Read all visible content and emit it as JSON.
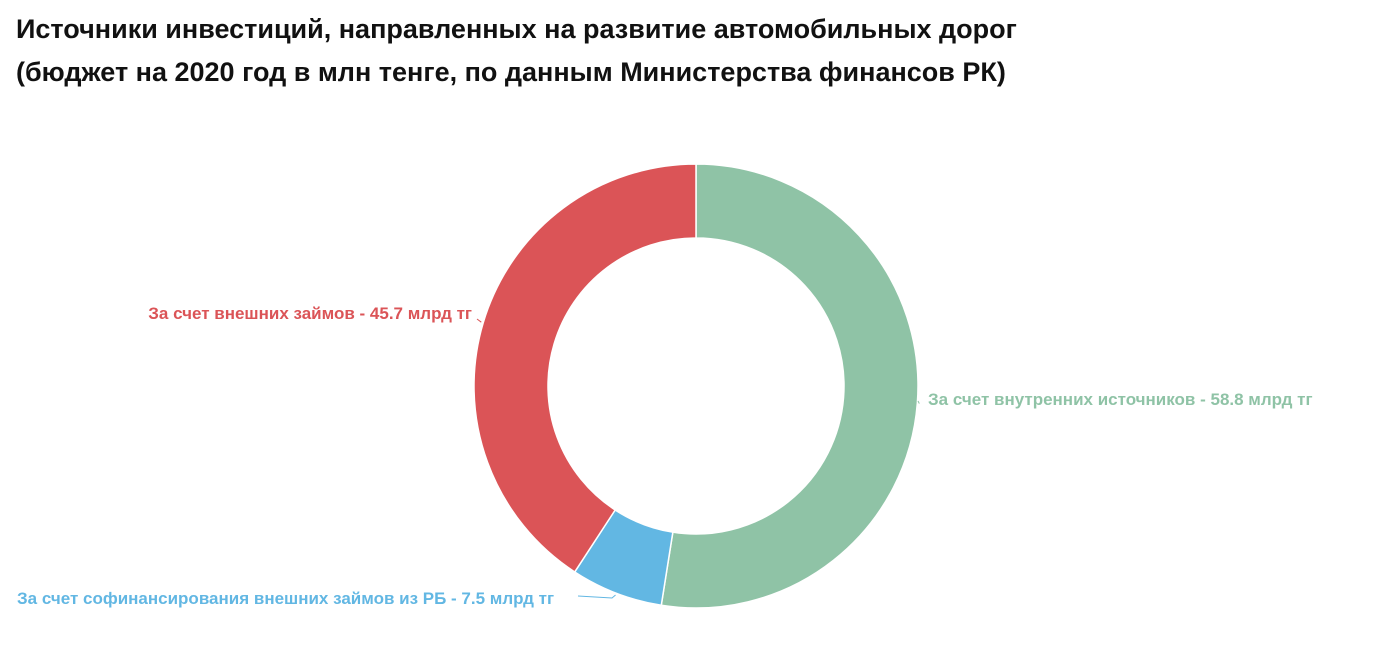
{
  "chart_data": {
    "type": "pie",
    "title": "Источники инвестиций, направленных на развитие автомобильных дорог",
    "subtitle": "(бюджет на 2020 год в млн тенге, по данным Министерства финансов РК)",
    "donut": true,
    "slices": [
      {
        "label": "За счет внутренних источников - 58.8 млрд тг",
        "value": 58.8,
        "color": "#8fc3a6"
      },
      {
        "label": "За счет софинансирования внешних займов из РБ - 7.5 млрд тг",
        "value": 7.5,
        "color": "#62b7e3"
      },
      {
        "label": "За счет внешних займов - 45.7 млрд тг",
        "value": 45.7,
        "color": "#db5457"
      }
    ]
  }
}
